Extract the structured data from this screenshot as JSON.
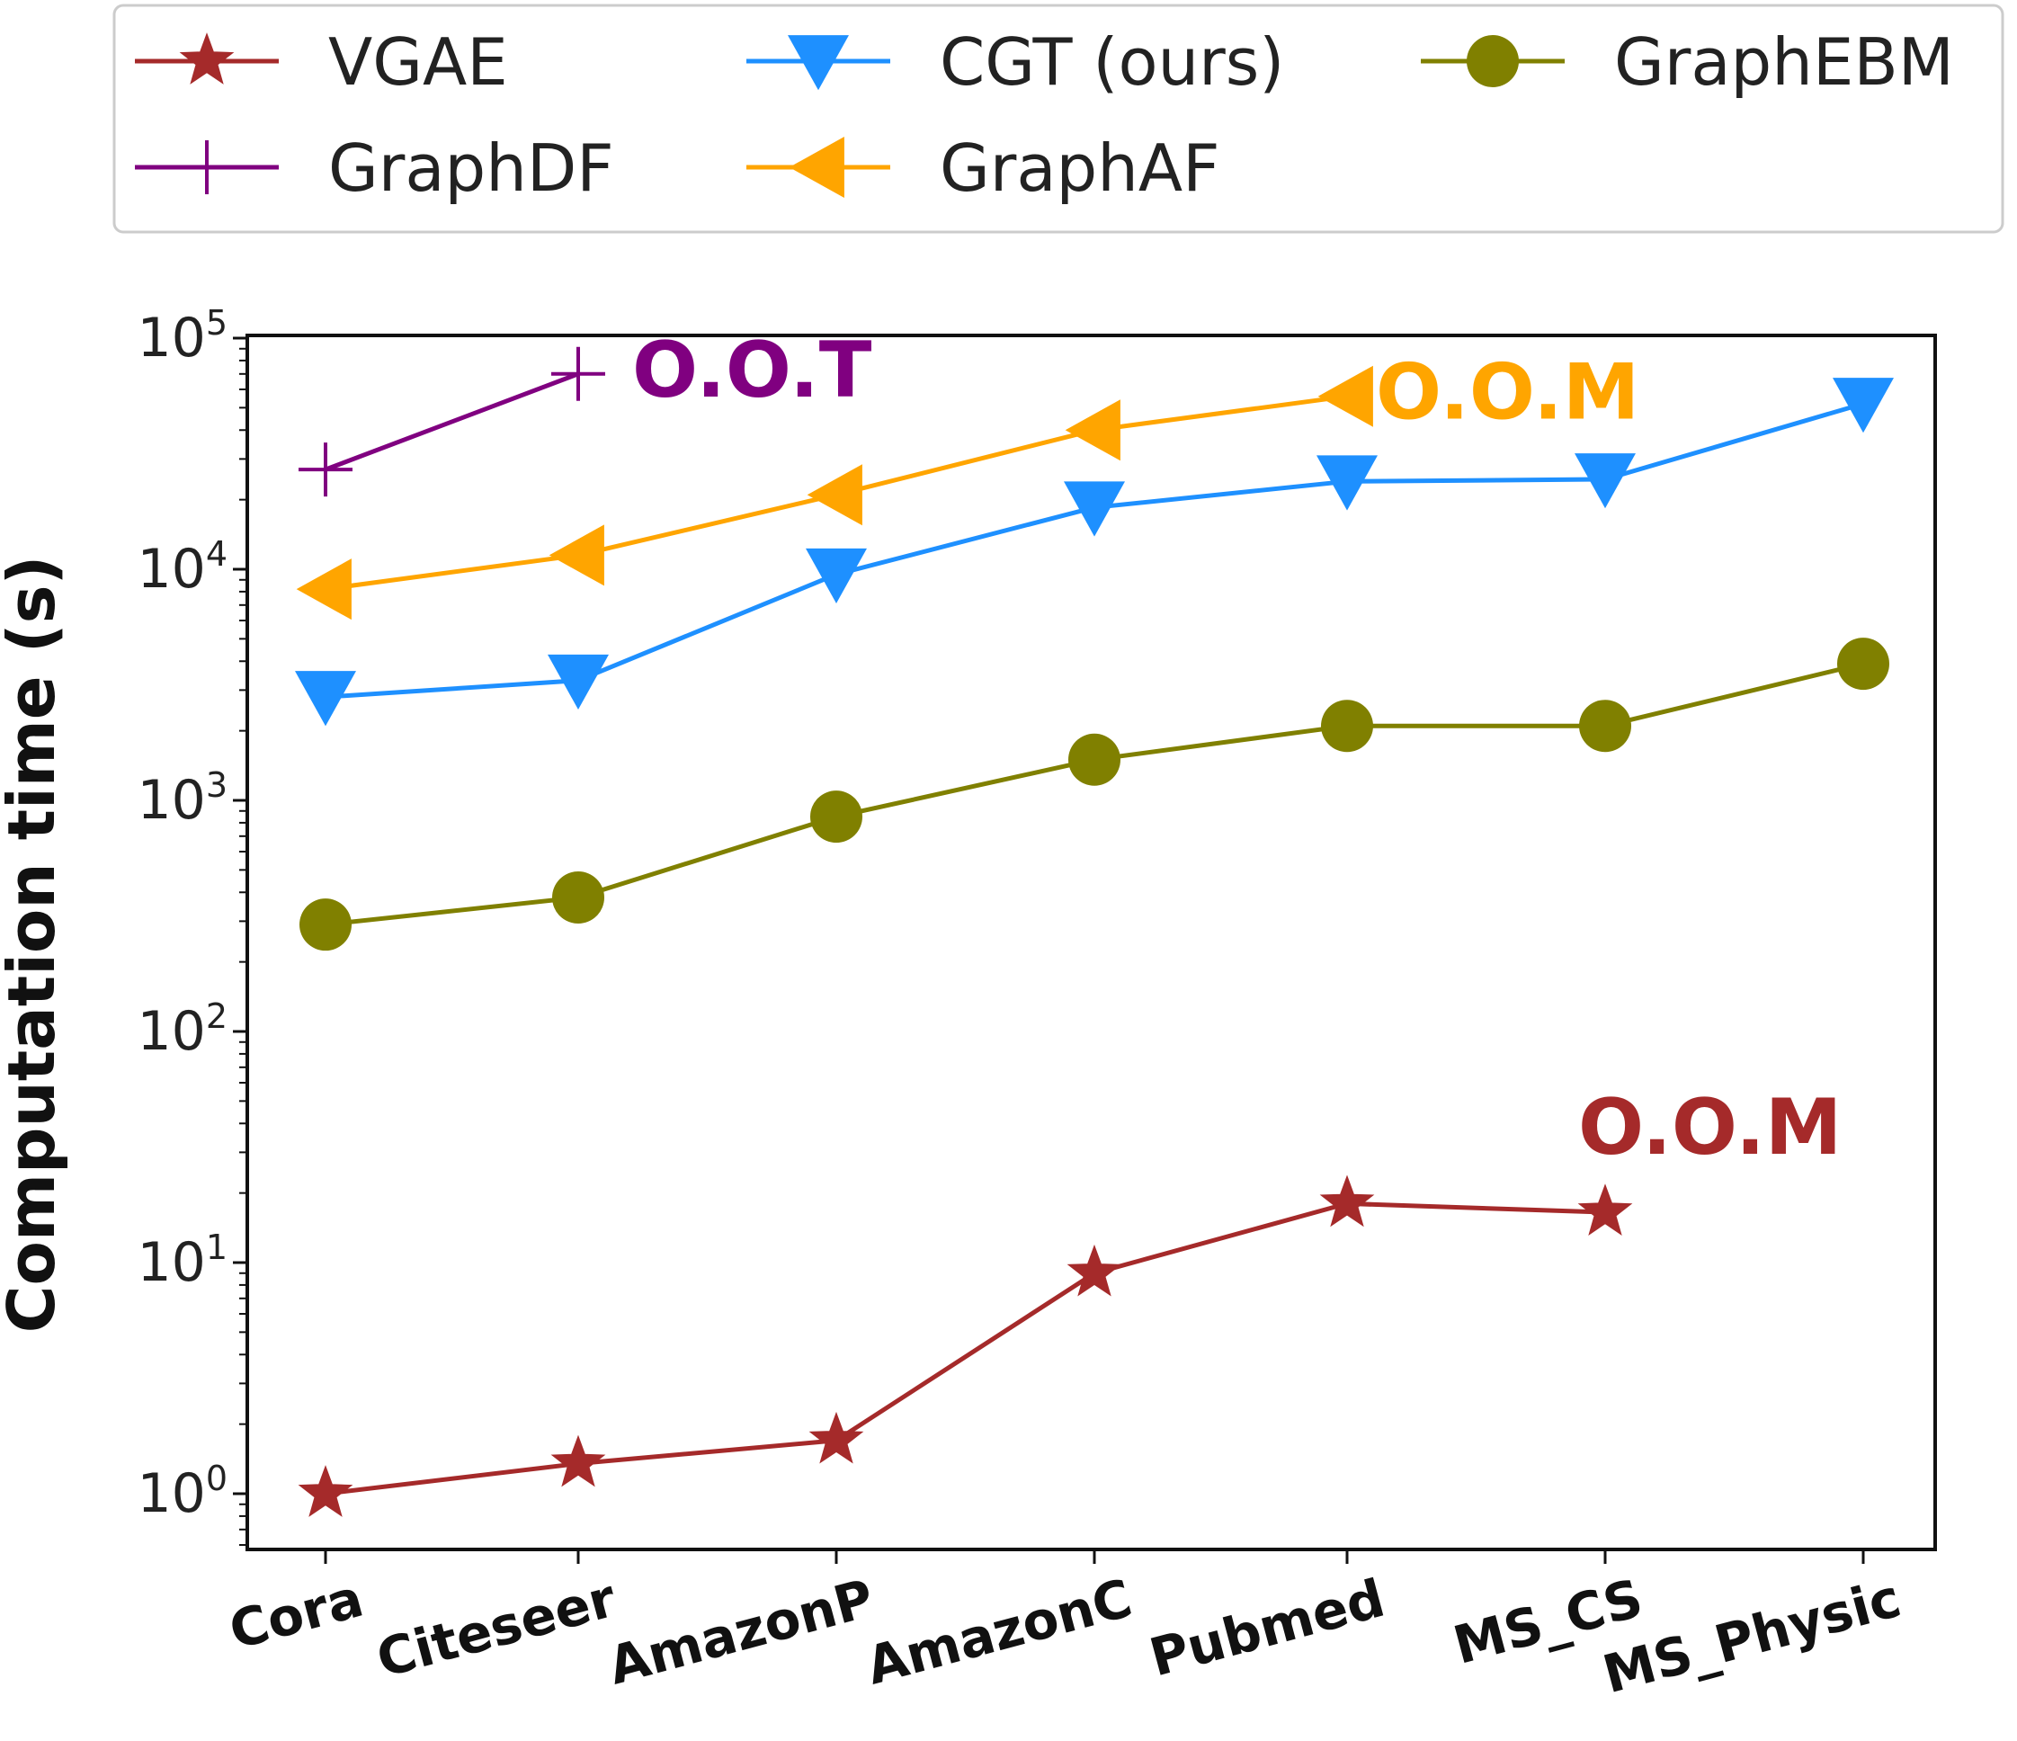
{
  "chart_data": {
    "type": "line",
    "title": "",
    "xlabel": "",
    "ylabel": "Computation time (s)",
    "yscale": "log",
    "ylim": [
      0.7,
      140000
    ],
    "legend_position": "top",
    "categories": [
      "Cora",
      "Citeseer",
      "AmazonP",
      "AmazonC",
      "Pubmed",
      "MS_CS",
      "MS_Physic"
    ],
    "yticks": [
      {
        "value": 1,
        "base": "10",
        "exp": "0"
      },
      {
        "value": 10,
        "base": "10",
        "exp": "1"
      },
      {
        "value": 100,
        "base": "10",
        "exp": "2"
      },
      {
        "value": 1000,
        "base": "10",
        "exp": "3"
      },
      {
        "value": 10000,
        "base": "10",
        "exp": "4"
      },
      {
        "value": 100000,
        "base": "10",
        "exp": "5"
      }
    ],
    "series": [
      {
        "name": "VGAE",
        "color": "#a52a2a",
        "marker": "star",
        "values": [
          1.0,
          1.35,
          1.7,
          9.0,
          18,
          16.5,
          null
        ]
      },
      {
        "name": "GraphDF",
        "color": "#800080",
        "marker": "plus",
        "values": [
          27000,
          70000,
          null,
          null,
          null,
          null,
          null
        ]
      },
      {
        "name": "CGT (ours)",
        "color": "#1e90ff",
        "marker": "triangle-down",
        "values": [
          2800,
          3300,
          9500,
          18500,
          24000,
          24500,
          52000
        ]
      },
      {
        "name": "GraphAF",
        "color": "#ffa500",
        "marker": "triangle-left",
        "values": [
          8200,
          11500,
          21000,
          40000,
          56000,
          null,
          null
        ]
      },
      {
        "name": "GraphEBM",
        "color": "#808000",
        "marker": "circle",
        "values": [
          290,
          380,
          850,
          1500,
          2100,
          2100,
          3900
        ]
      }
    ],
    "legend_order": [
      "VGAE",
      "GraphDF",
      "CGT (ours)",
      "GraphAF",
      "GraphEBM"
    ],
    "annotations": [
      {
        "text": "O.O.T",
        "color": "#800080",
        "series": "GraphDF"
      },
      {
        "text": "O.O.M",
        "color": "#ffa500",
        "series": "GraphAF"
      },
      {
        "text": "O.O.M",
        "color": "#a52a2a",
        "series": "VGAE"
      }
    ]
  }
}
